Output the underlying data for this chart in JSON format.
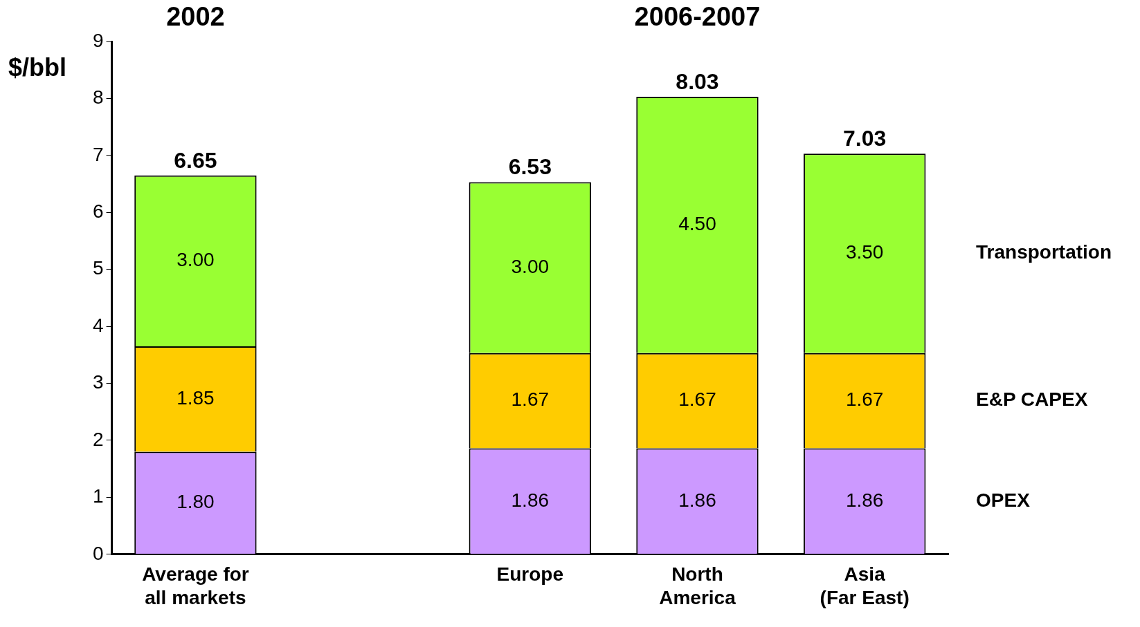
{
  "chart_data": {
    "type": "bar",
    "stacked": true,
    "ylabel": "$/bbl",
    "categories": [
      "Average for all markets",
      null,
      "Europe",
      "North America",
      "Asia (Far East)"
    ],
    "series": [
      {
        "name": "OPEX",
        "color": "#cc99ff",
        "values": [
          1.8,
          null,
          1.86,
          1.86,
          1.86
        ],
        "value_labels": [
          "1.80",
          null,
          "1.86",
          "1.86",
          "1.86"
        ]
      },
      {
        "name": "E&P CAPEX",
        "color": "#ffcc00",
        "values": [
          1.85,
          null,
          1.67,
          1.67,
          1.67
        ],
        "value_labels": [
          "1.85",
          null,
          "1.67",
          "1.67",
          "1.67"
        ]
      },
      {
        "name": "Transportation",
        "color": "#99ff33",
        "values": [
          3.0,
          null,
          3.0,
          4.5,
          3.5
        ],
        "value_labels": [
          "3.00",
          null,
          "3.00",
          "4.50",
          "3.50"
        ]
      }
    ],
    "totals": [
      "6.65",
      null,
      "6.53",
      "8.03",
      "7.03"
    ],
    "annotations": [
      "2002",
      "2006-2007"
    ],
    "ylim": [
      0,
      9
    ],
    "yticks": [
      0,
      1,
      2,
      3,
      4,
      5,
      6,
      7,
      8,
      9
    ],
    "grid": false,
    "legend": false
  }
}
